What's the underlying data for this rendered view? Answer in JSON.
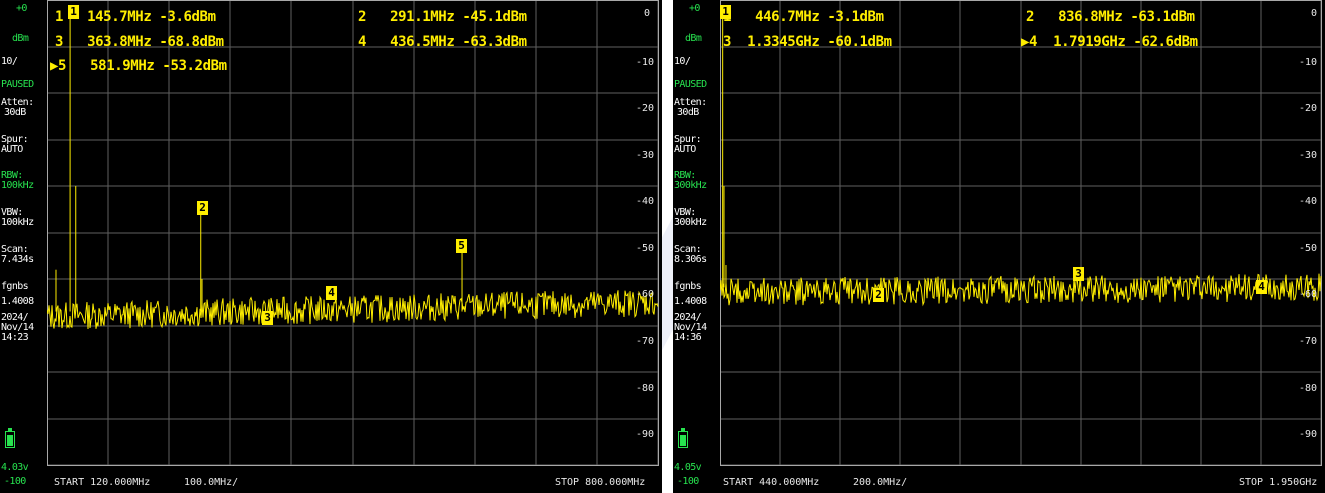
{
  "colors": {
    "sidebar_text": "#27e34f",
    "trace": "#ffee00",
    "marker": "#ffee00",
    "grid": "#5f5f5f",
    "background": "#000000"
  },
  "screens": [
    {
      "sidebar": {
        "ref_level": "+0",
        "ref_unit": "dBm",
        "scale": "10/",
        "status": "PAUSED",
        "atten_label": "Atten:",
        "atten_value": "30dB",
        "spur_label": "Spur:",
        "spur_value": "AUTO",
        "rbw_label": "RBW:",
        "rbw_value": "100kHz",
        "vbw_label": "VBW:",
        "vbw_value": "100kHz",
        "scan_label": "Scan:",
        "scan_value": "7.434s",
        "fw_label": "fgnbs",
        "fw_version": "1.4008",
        "date_year": "2024/",
        "date_md": "Nov/14",
        "time": "14:23",
        "battery": "4.03v",
        "bottom_level": "-100"
      },
      "markers": [
        {
          "num": "1",
          "freq": "145.7MHz",
          "level": "-3.6dBm"
        },
        {
          "num": "2",
          "freq": "291.1MHz",
          "level": "-45.1dBm"
        },
        {
          "num": "3",
          "freq": "363.8MHz",
          "level": "-68.8dBm"
        },
        {
          "num": "4",
          "freq": "436.5MHz",
          "level": "-63.3dBm"
        },
        {
          "num": "5",
          "freq": "581.9MHz",
          "level": "-53.2dBm"
        }
      ],
      "db_labels": [
        "0",
        "-10",
        "-20",
        "-30",
        "-40",
        "-50",
        "-60",
        "-70",
        "-80",
        "-90"
      ],
      "start": "START 120.000MHz",
      "div": "100.0MHz/",
      "stop": "STOP 800.000MHz",
      "trace": {
        "start_mhz": 120,
        "stop_mhz": 800,
        "noise_floor_dbm": -68,
        "noise_rise_dbm": 3
      }
    },
    {
      "sidebar": {
        "ref_level": "+0",
        "ref_unit": "dBm",
        "scale": "10/",
        "status": "PAUSED",
        "atten_label": "Atten:",
        "atten_value": "30dB",
        "spur_label": "Spur:",
        "spur_value": "AUTO",
        "rbw_label": "RBW:",
        "rbw_value": "300kHz",
        "vbw_label": "VBW:",
        "vbw_value": "300kHz",
        "scan_label": "Scan:",
        "scan_value": "8.306s",
        "fw_label": "fgnbs",
        "fw_version": "1.4008",
        "date_year": "2024/",
        "date_md": "Nov/14",
        "time": "14:36",
        "battery": "4.05v",
        "bottom_level": "-100"
      },
      "markers": [
        {
          "num": "1",
          "freq": "446.7MHz",
          "level": "-3.1dBm"
        },
        {
          "num": "2",
          "freq": "836.8MHz",
          "level": "-63.1dBm"
        },
        {
          "num": "3",
          "freq": "1.3345GHz",
          "level": "-60.1dBm"
        },
        {
          "num": "4",
          "freq": "1.7919GHz",
          "level": "-62.6dBm"
        }
      ],
      "db_labels": [
        "0",
        "-10",
        "-20",
        "-30",
        "-40",
        "-50",
        "-60",
        "-70",
        "-80",
        "-90"
      ],
      "start": "START 440.000MHz",
      "div": "200.0MHz/",
      "stop": "STOP 1.950GHz",
      "trace": {
        "start_mhz": 440,
        "stop_mhz": 1950,
        "noise_floor_dbm": -62.8,
        "noise_rise_dbm": 1
      }
    }
  ]
}
